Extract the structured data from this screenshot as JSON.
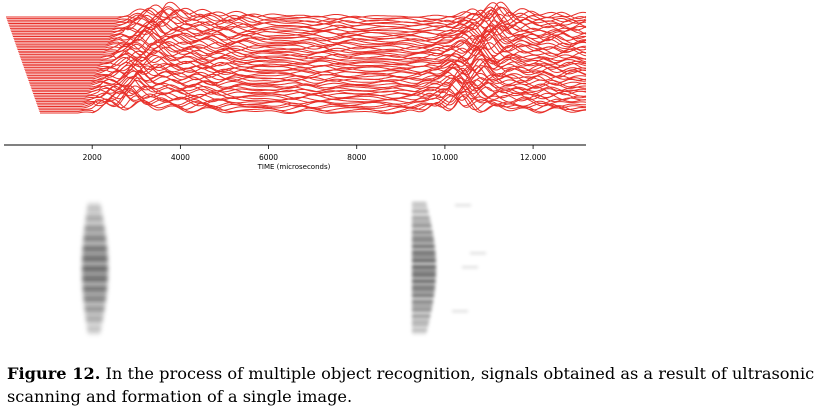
{
  "chart_data": {
    "type": "line",
    "xlabel": "TIME (microseconds)",
    "x_ticks": [
      "2000",
      "4000",
      "6000",
      "8000",
      "10.000",
      "12.000"
    ],
    "x_tick_values": [
      2000,
      4000,
      6000,
      8000,
      10000,
      12000
    ],
    "xlim": [
      0,
      13200
    ],
    "series_count": 60,
    "line_color": "#e8302a",
    "pulses": [
      {
        "start_time": 2000,
        "peak_time": 2800
      },
      {
        "start_time": 9300,
        "peak_time": 10300
      }
    ],
    "grid": false,
    "legend": "none"
  },
  "scan_image": {
    "colormap": "grayscale",
    "bands": [
      {
        "label": "object-1-reflection"
      },
      {
        "label": "object-2-reflection"
      }
    ]
  },
  "caption": {
    "label": "Figure 12.",
    "text": " In the process of multiple object recognition, signals obtained as a result of ultrasonic scanning and formation of a single image."
  }
}
